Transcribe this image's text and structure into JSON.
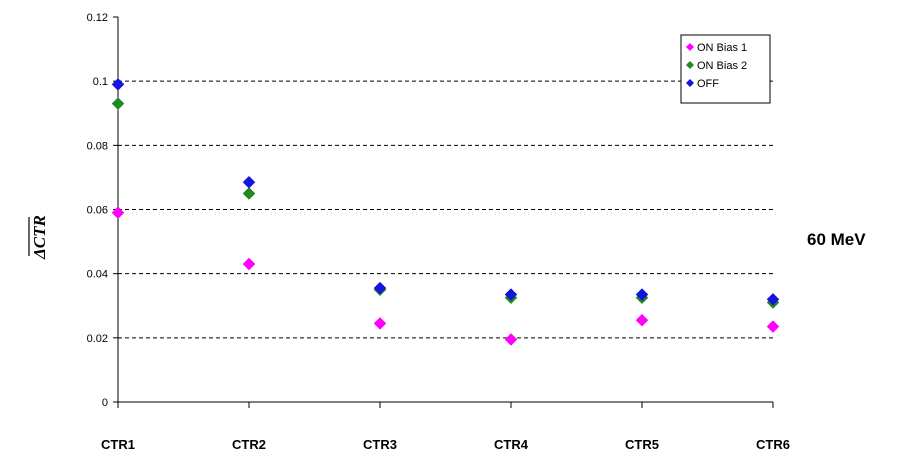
{
  "chart_data": {
    "type": "scatter",
    "title": "",
    "xlabel": "",
    "ylabel": "ΔCTR",
    "side_annotation": "60 MeV",
    "categories": [
      "CTR1",
      "CTR2",
      "CTR3",
      "CTR4",
      "CTR5",
      "CTR6"
    ],
    "ylim": [
      0,
      0.12
    ],
    "yticks": [
      "0",
      "0.02",
      "0.04",
      "0.06",
      "0.08",
      "0.1",
      "0.12"
    ],
    "ytick_values": [
      0,
      0.02,
      0.04,
      0.06,
      0.08,
      0.1,
      0.12
    ],
    "grid": "horizontal dashed",
    "legend_position": "top-right",
    "series": [
      {
        "name": "ON Bias 1",
        "color": "#ff00ff",
        "values": [
          0.059,
          0.043,
          0.0245,
          0.0195,
          0.0255,
          0.0235
        ]
      },
      {
        "name": "ON Bias 2",
        "color": "#1f8a1f",
        "values": [
          0.093,
          0.065,
          0.035,
          0.0325,
          0.0325,
          0.031
        ]
      },
      {
        "name": "OFF",
        "color": "#1515dd",
        "values": [
          0.099,
          0.0685,
          0.0355,
          0.0335,
          0.0335,
          0.032
        ]
      }
    ]
  }
}
